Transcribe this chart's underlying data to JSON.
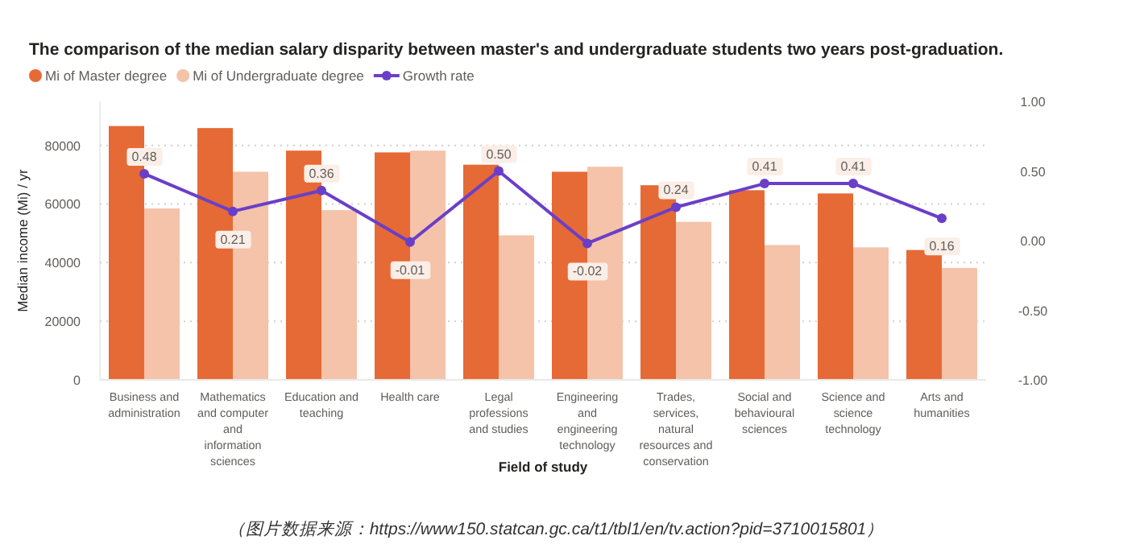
{
  "chart_data": {
    "type": "bar",
    "title": "The comparison of the median salary disparity between master's and undergraduate students two years post-graduation.",
    "categories": [
      "Business and administration",
      "Mathematics and computer and information sciences",
      "Education and teaching",
      "Health care",
      "Legal professions and studies",
      "Engineering and engineering technology",
      "Trades, services, natural resources and conservation",
      "Social and behavioural sciences",
      "Science and science technology",
      "Arts and humanities"
    ],
    "series": [
      {
        "name": "Mi of Master degree",
        "color": "#e66a35",
        "values": [
          86600,
          85900,
          78200,
          77600,
          73400,
          71000,
          66400,
          64700,
          63600,
          44300
        ]
      },
      {
        "name": "Mi of Undergraduate degree",
        "color": "#f4c3aa",
        "values": [
          58500,
          71000,
          57900,
          78200,
          49300,
          72700,
          53900,
          46000,
          45200,
          38200
        ]
      },
      {
        "name": "Growth rate",
        "type": "line",
        "axis": "y2",
        "color": "#6a3fc8",
        "values": [
          0.48,
          0.21,
          0.36,
          -0.01,
          0.5,
          -0.02,
          0.24,
          0.41,
          0.41,
          0.16
        ],
        "value_labels": [
          "0.48",
          "0.21",
          "0.36",
          "-0.01",
          "0.50",
          "-0.02",
          "0.24",
          "0.41",
          "0.41",
          "0.16"
        ]
      }
    ],
    "xlabel": "Field of study",
    "ylabel": "Median income (Mi) / yr",
    "ylim": [
      0,
      95000
    ],
    "yticks": [
      0,
      20000,
      40000,
      60000,
      80000
    ],
    "y2lim": [
      -1,
      1
    ],
    "y2ticks": [
      {
        "value": -1,
        "label": "-1.00"
      },
      {
        "value": -0.5,
        "label": "-0.50"
      },
      {
        "value": 0,
        "label": "0.00"
      },
      {
        "value": 0.5,
        "label": "0.50"
      },
      {
        "value": 1,
        "label": "1.00"
      }
    ],
    "grid": "y",
    "legend": "top left",
    "marker": "circle",
    "annotations": [
      "（图片数据来源：https://www150.statcan.gc.ca/t1/tbl1/en/tv.action?pid=3710015801）"
    ]
  }
}
